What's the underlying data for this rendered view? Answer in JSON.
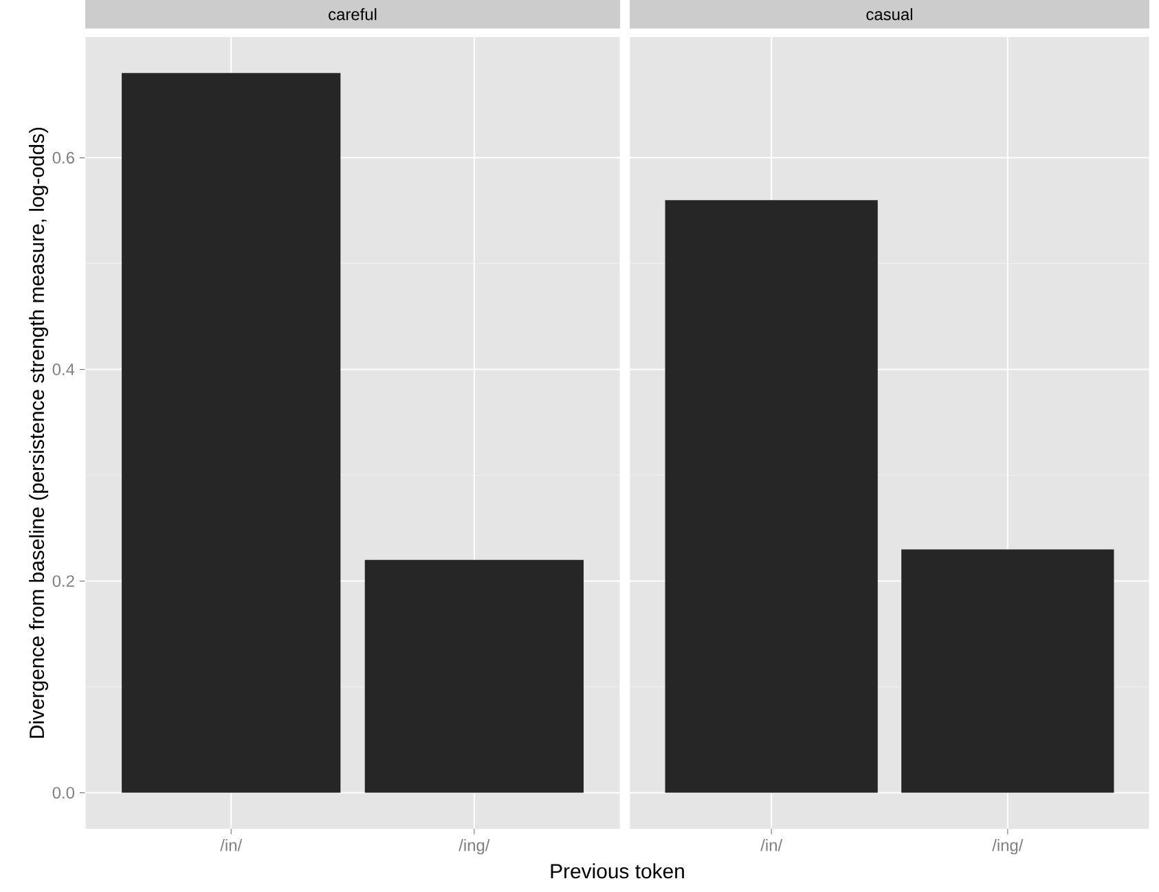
{
  "chart_data": [
    {
      "type": "bar",
      "title": "careful",
      "xlabel": "Previous token",
      "ylabel": "Divergence from baseline (persistence strength measure, log-odds)",
      "categories": [
        "/in/",
        "/ing/"
      ],
      "values": [
        0.68,
        0.22
      ],
      "color": "#262626",
      "ylim": [
        -0.034,
        0.714
      ],
      "yticks": [
        {
          "value": 0,
          "label": "0.0"
        },
        0.2,
        0.4,
        0.6
      ],
      "grid": true
    },
    {
      "type": "bar",
      "title": "casual",
      "categories": [
        "/in/",
        "/ing/"
      ],
      "values": [
        0.56,
        0.23
      ],
      "color": "#262626",
      "ylim": [
        -0.034,
        0.714
      ],
      "yticks": [
        0,
        0.2,
        0.4,
        0.6
      ],
      "grid": true,
      "tick_labels": "x"
    }
  ]
}
